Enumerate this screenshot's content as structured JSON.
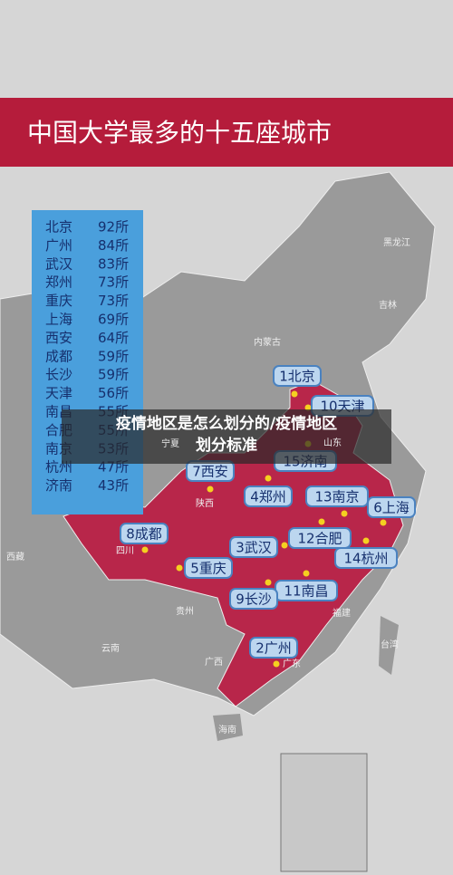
{
  "title": "中国大学最多的十五座城市",
  "ranking": [
    {
      "city": "北京",
      "count": "92所"
    },
    {
      "city": "广州",
      "count": "84所"
    },
    {
      "city": "武汉",
      "count": "83所"
    },
    {
      "city": "郑州",
      "count": "73所"
    },
    {
      "city": "重庆",
      "count": "73所"
    },
    {
      "city": "上海",
      "count": "69所"
    },
    {
      "city": "西安",
      "count": "64所"
    },
    {
      "city": "成都",
      "count": "59所"
    },
    {
      "city": "长沙",
      "count": "59所"
    },
    {
      "city": "天津",
      "count": "56所"
    },
    {
      "city": "南昌",
      "count": "55所"
    },
    {
      "city": "合肥",
      "count": "55所"
    },
    {
      "city": "南京",
      "count": "53所"
    },
    {
      "city": "杭州",
      "count": "47所"
    },
    {
      "city": "济南",
      "count": "43所"
    }
  ],
  "map_labels": [
    "1北京",
    "10天津",
    "15济南",
    "7西安",
    "4郑州",
    "13南京",
    "6上海",
    "8成都",
    "12合肥",
    "3武汉",
    "14杭州",
    "5重庆",
    "11南昌",
    "9长沙",
    "2广州"
  ],
  "regions": [
    "黑龙江",
    "吉林",
    "内蒙古",
    "山东",
    "宁夏",
    "陕西",
    "四川",
    "西藏",
    "云南",
    "贵州",
    "广西",
    "福建",
    "台湾",
    "广东",
    "海南"
  ],
  "caption": "疫情地区是怎么划分的/疫情地区划分标准"
}
